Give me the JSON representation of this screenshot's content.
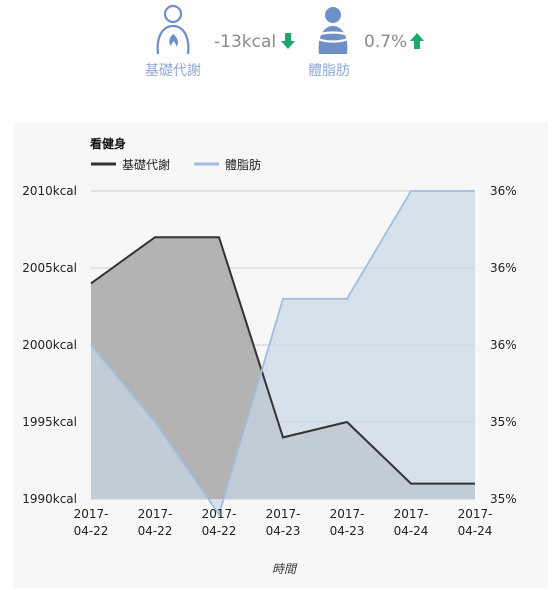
{
  "header": {
    "metrics": [
      {
        "label": "基礎代謝",
        "value": "-13kcal",
        "trend": "down",
        "trend_color": "#1ba86a",
        "icon": "person-flame-icon"
      },
      {
        "label": "體脂肪",
        "value": "0.7%",
        "trend": "up",
        "trend_color": "#1ba86a",
        "icon": "body-fat-icon"
      }
    ]
  },
  "chart_data": {
    "type": "area",
    "title": "看健身",
    "xlabel": "時間",
    "x": [
      "2017-04-22",
      "2017-04-22",
      "2017-04-22",
      "2017-04-23",
      "2017-04-23",
      "2017-04-24",
      "2017-04-24"
    ],
    "x_tick_labels": [
      [
        "2017-",
        "04-22"
      ],
      [
        "2017-",
        "04-22"
      ],
      [
        "2017-",
        "04-22"
      ],
      [
        "2017-",
        "04-23"
      ],
      [
        "2017-",
        "04-23"
      ],
      [
        "2017-",
        "04-24"
      ],
      [
        "2017-",
        "04-24"
      ]
    ],
    "y_left": {
      "ticks": [
        "2010kcal",
        "2005kcal",
        "2000kcal",
        "1995kcal",
        "1990kcal"
      ],
      "lim": [
        1990,
        2010
      ]
    },
    "y_right": {
      "ticks": [
        "36%",
        "36%",
        "36%",
        "35%",
        "35%"
      ],
      "lim": [
        35.0,
        36.0
      ]
    },
    "grid": true,
    "legend_position": "top-left",
    "series": [
      {
        "name": "基礎代謝",
        "axis": "left",
        "values": [
          2004,
          2007,
          2007,
          1994,
          1995,
          1991,
          1991
        ],
        "line_color": "#333333",
        "fill_color": "#b3b3b3"
      },
      {
        "name": "體脂肪",
        "axis": "right",
        "values": [
          35.5,
          35.25,
          34.95,
          35.65,
          35.65,
          36.0,
          36.0
        ],
        "line_color": "#9fbfe0",
        "fill_color": "#c9d7e6"
      }
    ]
  }
}
